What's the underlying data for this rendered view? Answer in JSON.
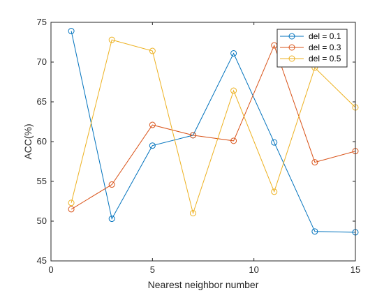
{
  "chart_data": {
    "type": "line",
    "xlabel": "Nearest neighbor number",
    "ylabel": "ACC(%)",
    "xlim": [
      0,
      15
    ],
    "ylim": [
      45,
      75
    ],
    "xticks": [
      0,
      5,
      10,
      15
    ],
    "yticks": [
      45,
      50,
      55,
      60,
      65,
      70,
      75
    ],
    "grid": false,
    "legend_position": "top-right",
    "marker": "open-circle",
    "x": [
      1,
      3,
      5,
      7,
      9,
      11,
      13,
      15
    ],
    "series": [
      {
        "name": "del = 0.1",
        "color": "#0072BD",
        "values": [
          73.9,
          50.3,
          59.5,
          60.8,
          71.1,
          59.9,
          48.7,
          48.6
        ]
      },
      {
        "name": "del = 0.3",
        "color": "#D95319",
        "values": [
          51.5,
          54.6,
          62.1,
          60.8,
          60.1,
          72.1,
          57.4,
          58.8
        ]
      },
      {
        "name": "del = 0.5",
        "color": "#EDB120",
        "values": [
          52.3,
          72.8,
          71.4,
          51.0,
          66.4,
          53.7,
          69.3,
          64.3
        ]
      }
    ]
  }
}
